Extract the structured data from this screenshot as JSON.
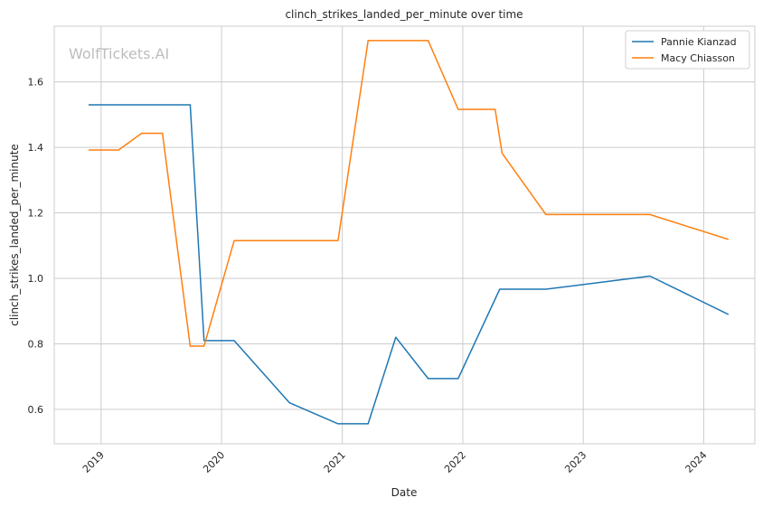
{
  "watermark": "WolfTickets.AI",
  "chart_data": {
    "type": "line",
    "title": "clinch_strikes_landed_per_minute over time",
    "xlabel": "Date",
    "ylabel": "clinch_strikes_landed_per_minute",
    "x_ticks": [
      "2019",
      "2020",
      "2021",
      "2022",
      "2023",
      "2024"
    ],
    "y_ticks": [
      "0.6",
      "0.8",
      "1.0",
      "1.2",
      "1.4",
      "1.6"
    ],
    "xlim": [
      "2018-08-12",
      "2024-06-04"
    ],
    "ylim": [
      0.495,
      1.77
    ],
    "grid": true,
    "legend_position": "top-right",
    "series": [
      {
        "name": "Pannie Kianzad",
        "color": "#1f77b4",
        "points": [
          [
            "2018-11-24",
            1.53
          ],
          [
            "2019-09-28",
            1.53
          ],
          [
            "2019-11-09",
            0.81
          ],
          [
            "2020-02-08",
            0.81
          ],
          [
            "2020-07-25",
            0.62
          ],
          [
            "2020-12-19",
            0.556
          ],
          [
            "2021-03-20",
            0.556
          ],
          [
            "2021-06-12",
            0.82
          ],
          [
            "2021-09-18",
            0.694
          ],
          [
            "2021-12-18",
            0.694
          ],
          [
            "2022-04-23",
            0.967
          ],
          [
            "2022-09-10",
            0.967
          ],
          [
            "2023-07-22",
            1.007
          ],
          [
            "2024-03-16",
            0.89
          ]
        ]
      },
      {
        "name": "Macy Chiasson",
        "color": "#ff7f0e",
        "points": [
          [
            "2018-11-24",
            1.392
          ],
          [
            "2019-02-23",
            1.392
          ],
          [
            "2019-05-04",
            1.443
          ],
          [
            "2019-07-06",
            1.443
          ],
          [
            "2019-09-28",
            0.793
          ],
          [
            "2019-11-09",
            0.793
          ],
          [
            "2020-02-08",
            1.115
          ],
          [
            "2020-12-19",
            1.115
          ],
          [
            "2021-03-20",
            1.726
          ],
          [
            "2021-09-18",
            1.726
          ],
          [
            "2021-12-18",
            1.516
          ],
          [
            "2022-04-09",
            1.516
          ],
          [
            "2022-04-30",
            1.382
          ],
          [
            "2022-09-10",
            1.195
          ],
          [
            "2023-07-22",
            1.195
          ],
          [
            "2024-03-16",
            1.119
          ]
        ]
      }
    ]
  }
}
